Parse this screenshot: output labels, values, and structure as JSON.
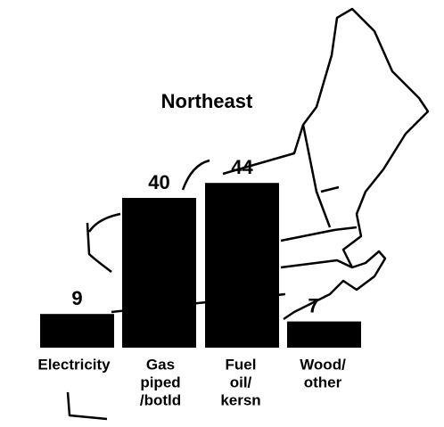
{
  "chart_data": {
    "type": "bar",
    "title": "Northeast",
    "categories": [
      [
        "Electricity"
      ],
      [
        "Gas",
        "piped",
        "/botld"
      ],
      [
        "Fuel",
        "oil/",
        "kersn"
      ],
      [
        "Wood/",
        "other"
      ]
    ],
    "values": [
      9,
      40,
      44,
      7
    ],
    "color": "#000000"
  }
}
